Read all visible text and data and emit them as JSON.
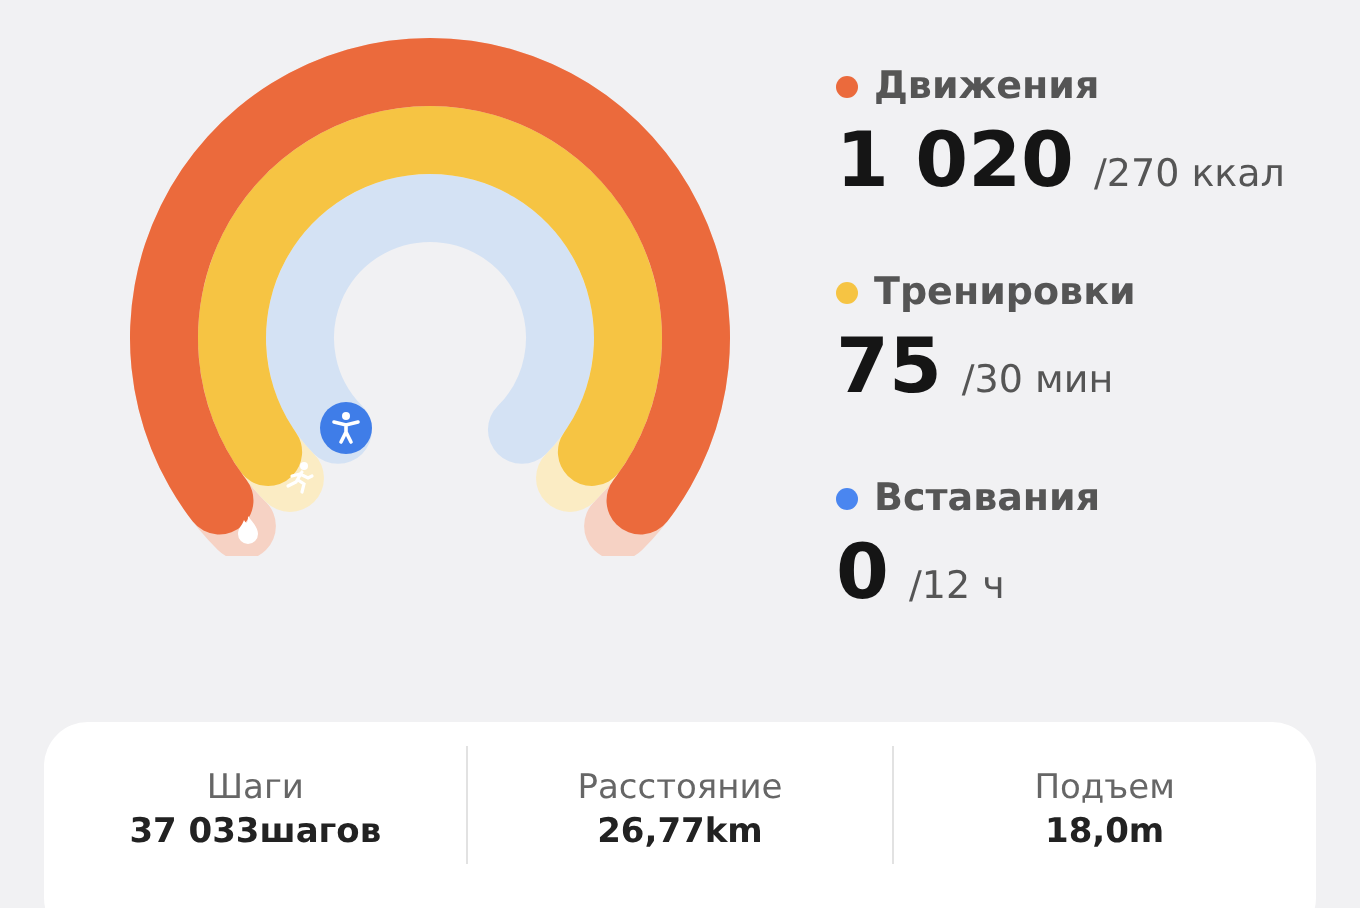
{
  "chart_data": {
    "type": "other",
    "categories": [
      "Движения",
      "Тренировки",
      "Вставания"
    ],
    "values": [
      1020,
      75,
      0
    ],
    "value_labels": [
      "1 020",
      "75",
      "0"
    ],
    "colors": [
      "#eb6a3c",
      "#f6c443",
      "#4a86f0"
    ],
    "annotations": [
      "/270 ккал",
      "/30 мин",
      "/12 ч",
      "Шаги",
      "37 033шагов",
      "Расстояние",
      "26,77km",
      "Подъем",
      "18,0m"
    ]
  }
}
